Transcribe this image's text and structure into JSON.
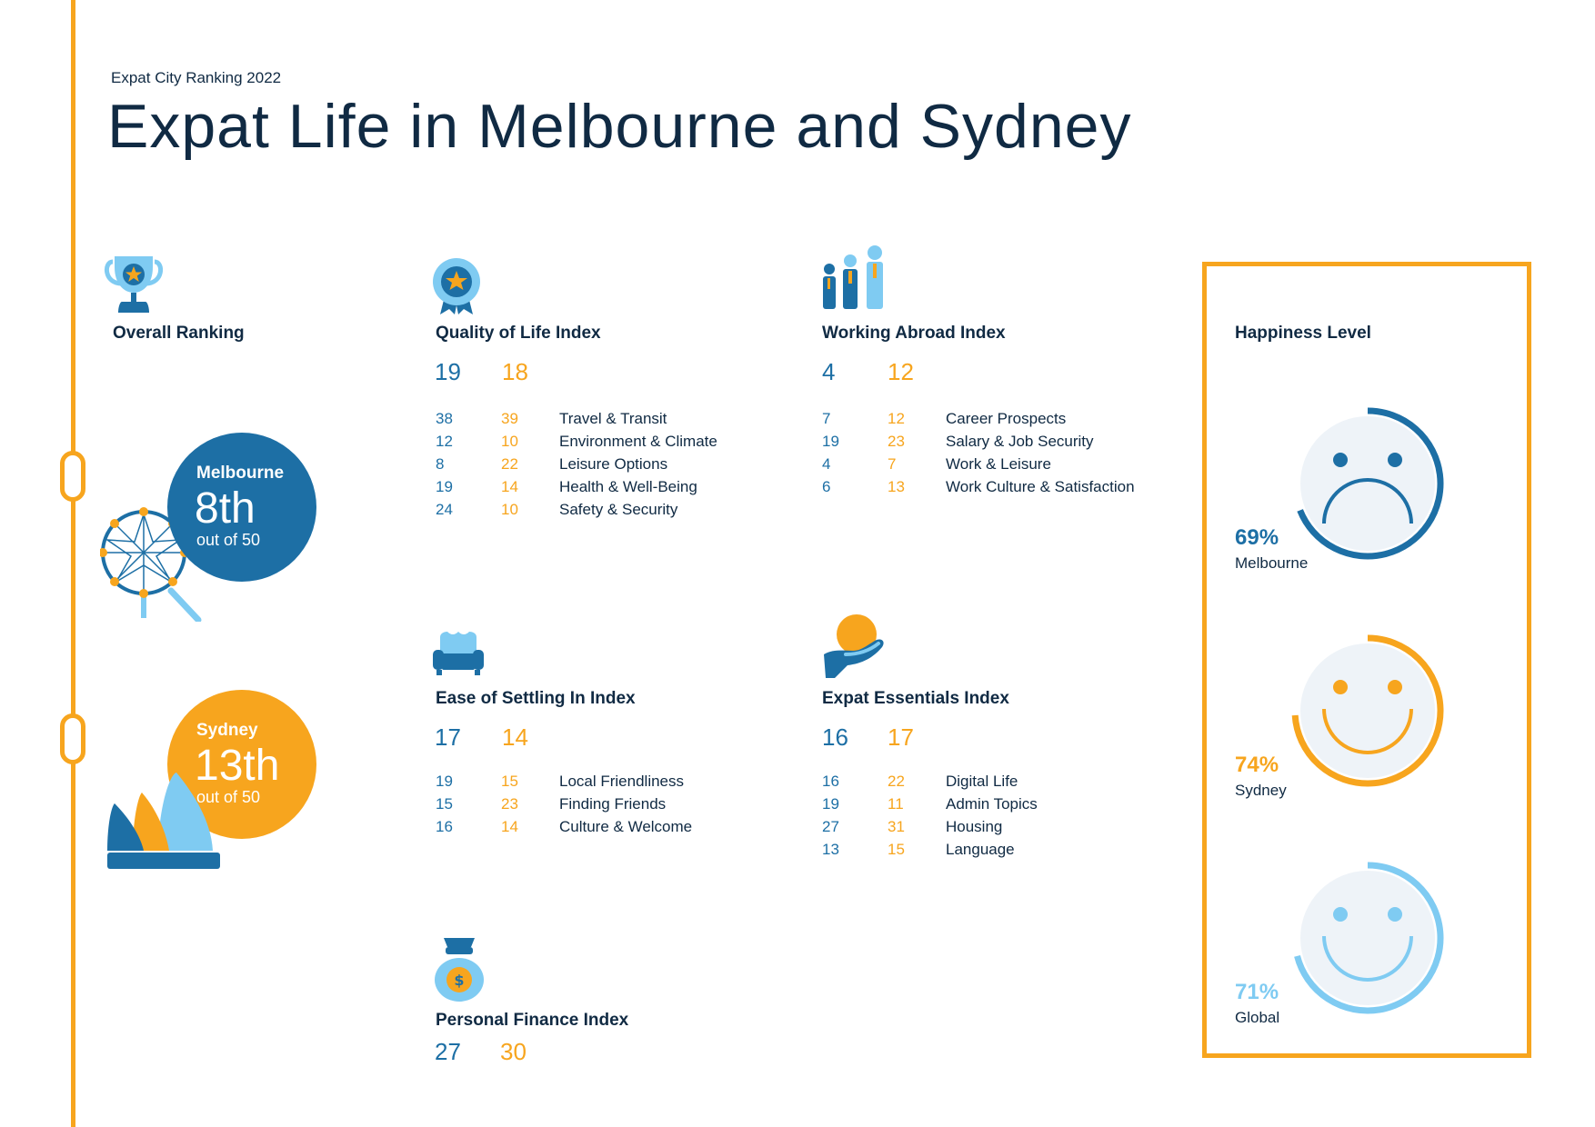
{
  "header": {
    "kicker": "Expat City Ranking 2022",
    "title": "Expat Life in Melbourne and Sydney"
  },
  "colors": {
    "melbourne": "#1d6fa5",
    "sydney": "#f7a51e",
    "global": "#7fcbf2",
    "text": "#102a43"
  },
  "overall": {
    "title": "Overall Ranking",
    "melbourne": {
      "city": "Melbourne",
      "rank": "8th",
      "out_of": "out of 50",
      "icon": "ferris-wheel-icon"
    },
    "sydney": {
      "city": "Sydney",
      "rank": "13th",
      "out_of": "out of 50",
      "icon": "opera-house-icon"
    },
    "icon": "trophy-icon"
  },
  "quality": {
    "title": "Quality of Life Index",
    "melbourne": "19",
    "sydney": "18",
    "icon": "medal-icon",
    "rows": [
      {
        "m": "38",
        "s": "39",
        "label": "Travel & Transit"
      },
      {
        "m": "12",
        "s": "10",
        "label": "Environment & Climate"
      },
      {
        "m": "8",
        "s": "22",
        "label": "Leisure Options"
      },
      {
        "m": "19",
        "s": "14",
        "label": "Health & Well-Being"
      },
      {
        "m": "24",
        "s": "10",
        "label": "Safety & Security"
      }
    ]
  },
  "working": {
    "title": "Working Abroad Index",
    "melbourne": "4",
    "sydney": "12",
    "icon": "business-people-icon",
    "rows": [
      {
        "m": "7",
        "s": "12",
        "label": "Career Prospects"
      },
      {
        "m": "19",
        "s": "23",
        "label": "Salary & Job Security"
      },
      {
        "m": "4",
        "s": "7",
        "label": "Work & Leisure"
      },
      {
        "m": "6",
        "s": "13",
        "label": "Work Culture & Satisfaction"
      }
    ]
  },
  "settling": {
    "title": "Ease of Settling In Index",
    "melbourne": "17",
    "sydney": "14",
    "icon": "armchair-icon",
    "rows": [
      {
        "m": "19",
        "s": "15",
        "label": "Local Friendliness"
      },
      {
        "m": "15",
        "s": "23",
        "label": "Finding Friends"
      },
      {
        "m": "16",
        "s": "14",
        "label": "Culture & Welcome"
      }
    ]
  },
  "essentials": {
    "title": "Expat Essentials Index",
    "melbourne": "16",
    "sydney": "17",
    "icon": "hand-holding-ball-icon",
    "rows": [
      {
        "m": "16",
        "s": "22",
        "label": "Digital Life"
      },
      {
        "m": "19",
        "s": "11",
        "label": "Admin Topics"
      },
      {
        "m": "27",
        "s": "31",
        "label": "Housing"
      },
      {
        "m": "13",
        "s": "15",
        "label": "Language"
      }
    ]
  },
  "finance": {
    "title": "Personal Finance Index",
    "melbourne": "27",
    "sydney": "30",
    "icon": "money-bag-icon"
  },
  "happiness": {
    "title": "Happiness Level",
    "items": [
      {
        "pct": "69%",
        "label": "Melbourne",
        "value": 0.69,
        "mood": "sad",
        "color": "#1d6fa5"
      },
      {
        "pct": "74%",
        "label": "Sydney",
        "value": 0.74,
        "mood": "happy",
        "color": "#f7a51e"
      },
      {
        "pct": "71%",
        "label": "Global",
        "value": 0.71,
        "mood": "happy",
        "color": "#7fcbf2"
      }
    ]
  }
}
